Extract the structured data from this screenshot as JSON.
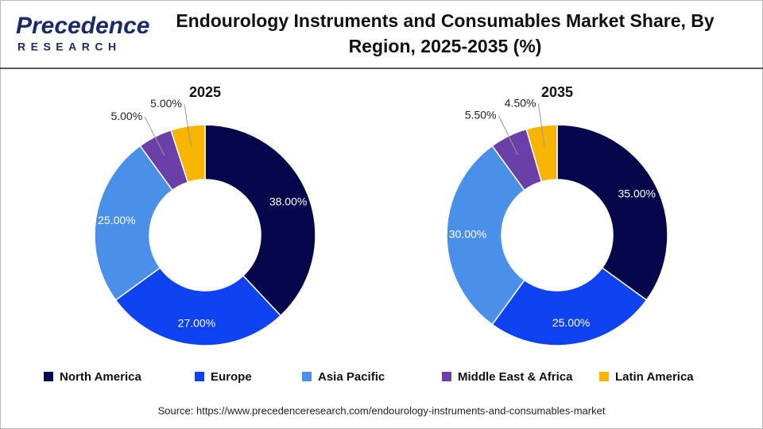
{
  "logo": {
    "name": "Precedence",
    "tagline": "RESEARCH"
  },
  "title": "Endourology Instruments and Consumables Market Share, By Region, 2025-2035 (%)",
  "source": "Source: https://www.precedenceresearch.com/endourology-instruments-and-consumables-market",
  "chart_data": [
    {
      "type": "pie",
      "donut": true,
      "title": "2025",
      "categories": [
        "North America",
        "Europe",
        "Asia Pacific",
        "Middle East & Africa",
        "Latin America"
      ],
      "values": [
        38,
        27,
        25,
        5,
        5
      ],
      "value_labels": [
        "38.00%",
        "27.00%",
        "25.00%",
        "5.00%",
        "5.00%"
      ],
      "colors": [
        "#06064d",
        "#0f43f2",
        "#4a8fe8",
        "#6b3fa8",
        "#f7b500"
      ]
    },
    {
      "type": "pie",
      "donut": true,
      "title": "2035",
      "categories": [
        "North America",
        "Europe",
        "Asia Pacific",
        "Middle East & Africa",
        "Latin America"
      ],
      "values": [
        35,
        25,
        30,
        5.5,
        4.5
      ],
      "value_labels": [
        "35.00%",
        "25.00%",
        "30.00%",
        "5.50%",
        "4.50%"
      ],
      "colors": [
        "#06064d",
        "#0f43f2",
        "#4a8fe8",
        "#6b3fa8",
        "#f7b500"
      ]
    }
  ]
}
